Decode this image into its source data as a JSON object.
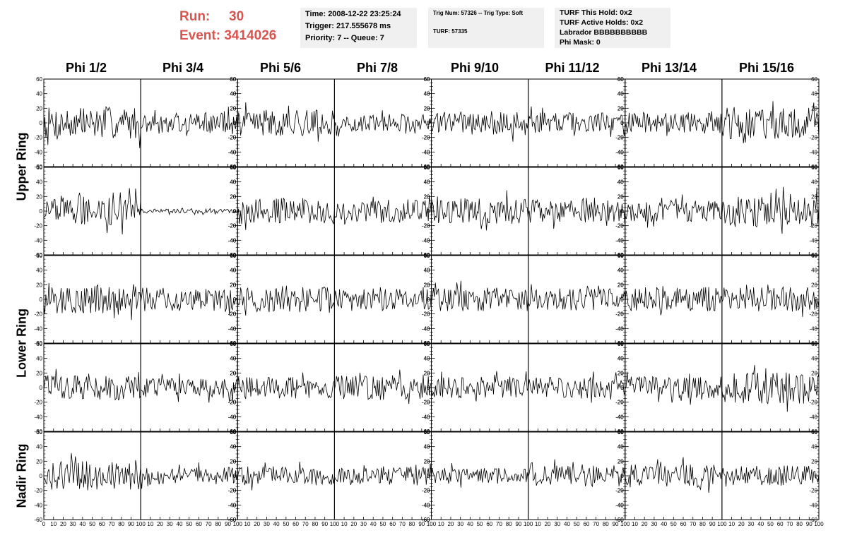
{
  "header": {
    "run_label": "Run:",
    "run_value": "30",
    "event_label": "Event:",
    "event_value": "3414026",
    "accent_color": "#d9534f"
  },
  "info_boxes": {
    "time": {
      "line1": "Time: 2008-12-22 23:25:24",
      "line2": "Trigger: 217.555678 ms",
      "line3": "Priority: 7 -- Queue: 7"
    },
    "trig": {
      "line1": "Trig Num: 57326 -- Trig Type: Soft",
      "line2": "TURF: 57335"
    },
    "turf": {
      "line1": "TURF This Hold: 0x2",
      "line2": "TURF Active Holds: 0x2",
      "line3": "Labrador BBBBBBBBBB",
      "line4": "Phi Mask: 0"
    }
  },
  "columns": [
    "Phi 1/2",
    "Phi 3/4",
    "Phi 5/6",
    "Phi 7/8",
    "Phi 9/10",
    "Phi 11/12",
    "Phi 13/14",
    "Phi 15/16"
  ],
  "rings": [
    {
      "label": "Upper Ring",
      "rows": [
        0,
        1
      ]
    },
    {
      "label": "Lower Ring",
      "rows": [
        2,
        3
      ]
    },
    {
      "label": "Nadir Ring",
      "rows": [
        4
      ]
    }
  ],
  "chart_data": {
    "type": "line",
    "layout": "grid of 5 rows x 8 columns of waveform panels",
    "xlim": [
      0,
      100
    ],
    "ylim": [
      -60,
      60
    ],
    "x_ticks": [
      0,
      10,
      20,
      30,
      40,
      50,
      60,
      70,
      80,
      90,
      100
    ],
    "y_ticks": [
      -60,
      -40,
      -20,
      0,
      20,
      40,
      60
    ],
    "x_tick_labels": [
      "0",
      "10",
      "20",
      "30",
      "40",
      "50",
      "60",
      "70",
      "80",
      "90",
      "100"
    ],
    "y_tick_labels": [
      "-60",
      "-40",
      "-20",
      "0",
      "20",
      "40",
      "60"
    ],
    "samples_per_trace": 96,
    "rows": 5,
    "cols": 8,
    "trace_amplitude": [
      [
        22,
        14,
        18,
        12,
        17,
        14,
        15,
        22
      ],
      [
        20,
        3,
        18,
        16,
        18,
        16,
        15,
        22
      ],
      [
        20,
        16,
        18,
        14,
        16,
        15,
        17,
        17
      ],
      [
        17,
        13,
        15,
        17,
        15,
        14,
        15,
        22
      ],
      [
        20,
        12,
        13,
        13,
        11,
        15,
        16,
        14
      ]
    ],
    "line_color": "#000000"
  }
}
